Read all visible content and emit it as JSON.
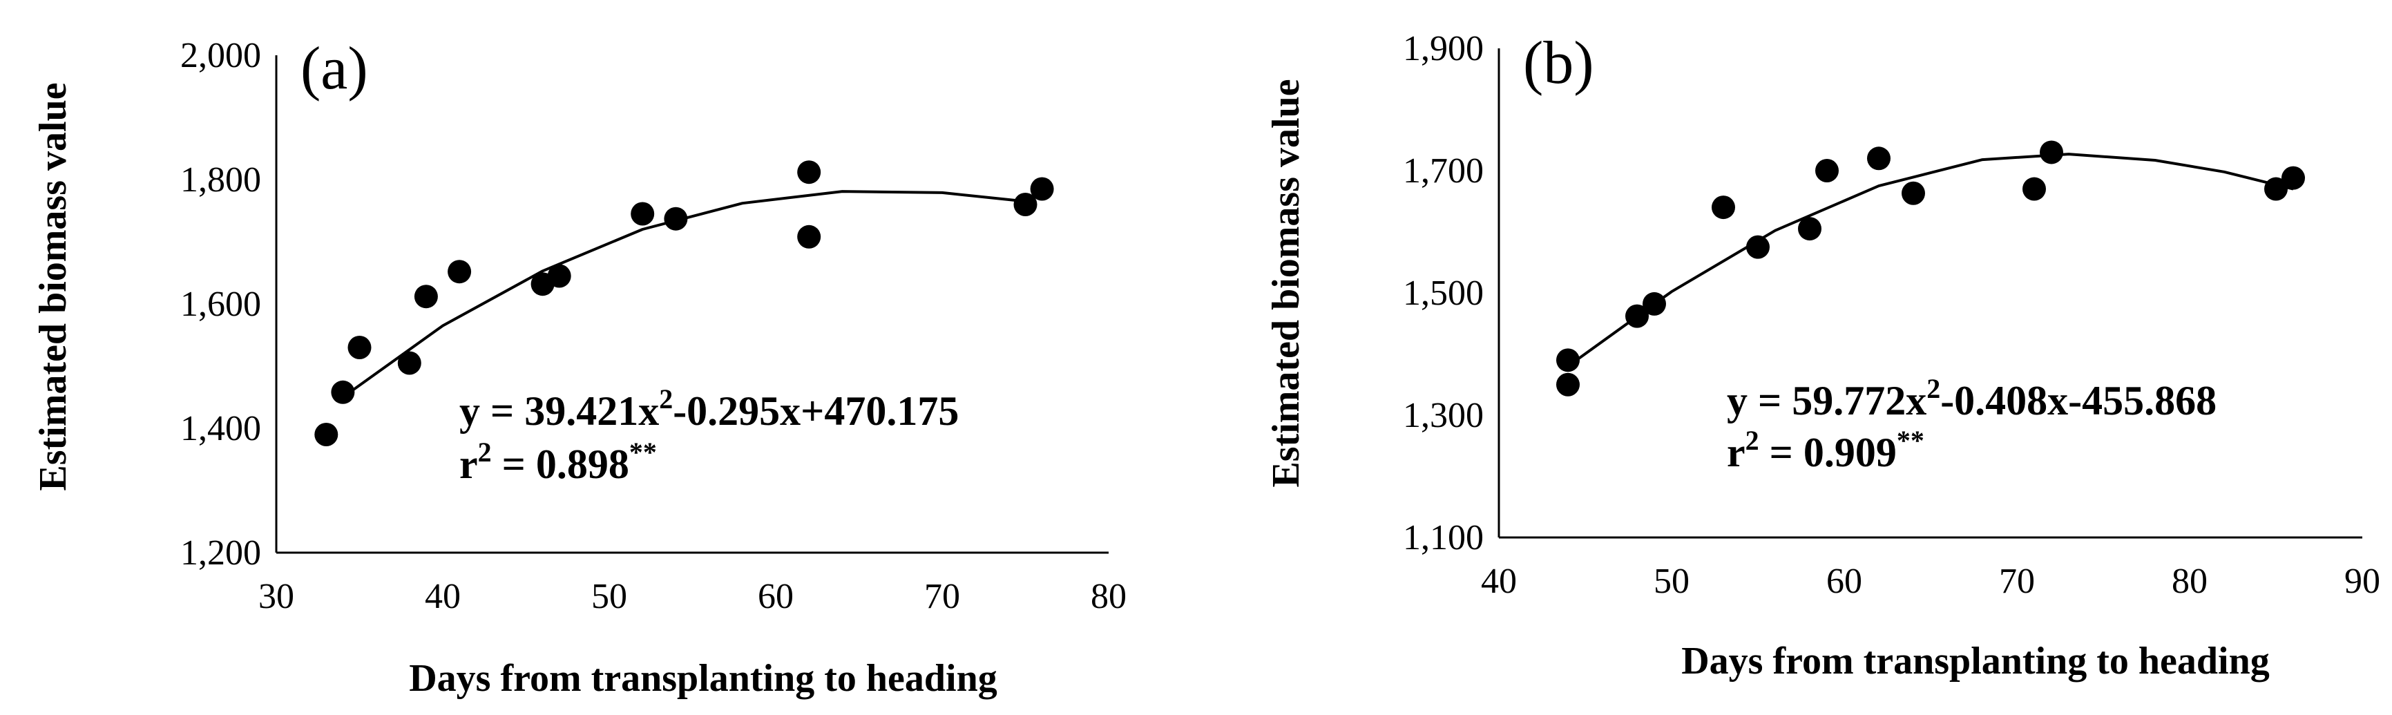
{
  "chart_data": [
    {
      "type": "scatter",
      "panel_label": "(a)",
      "xlabel": "Days from transplanting to heading",
      "ylabel": "Estimated biomass value",
      "xlim": [
        30,
        80
      ],
      "ylim": [
        1200,
        2000
      ],
      "xticks": [
        30,
        40,
        50,
        60,
        70,
        80
      ],
      "yticks": [
        1200,
        1400,
        1600,
        1800,
        2000
      ],
      "xtick_labels": [
        "30",
        "40",
        "50",
        "60",
        "70",
        "80"
      ],
      "ytick_labels": [
        "1,200",
        "1,400",
        "1,600",
        "1,800",
        "2,000"
      ],
      "grid": false,
      "series": [
        {
          "points": [
            {
              "x": 33,
              "y": 1390
            },
            {
              "x": 34,
              "y": 1458
            },
            {
              "x": 35,
              "y": 1530
            },
            {
              "x": 38,
              "y": 1505
            },
            {
              "x": 39,
              "y": 1612
            },
            {
              "x": 41,
              "y": 1652
            },
            {
              "x": 46,
              "y": 1632
            },
            {
              "x": 47,
              "y": 1645
            },
            {
              "x": 52,
              "y": 1745
            },
            {
              "x": 54,
              "y": 1737
            },
            {
              "x": 62,
              "y": 1812
            },
            {
              "x": 62,
              "y": 1708
            },
            {
              "x": 75,
              "y": 1760
            },
            {
              "x": 76,
              "y": 1785
            }
          ]
        }
      ],
      "trendline": {
        "x_range": [
          34,
          75
        ],
        "points": [
          {
            "x": 34,
            "y": 1450
          },
          {
            "x": 40,
            "y": 1565
          },
          {
            "x": 46,
            "y": 1653
          },
          {
            "x": 52,
            "y": 1720
          },
          {
            "x": 58,
            "y": 1762
          },
          {
            "x": 64,
            "y": 1781
          },
          {
            "x": 70,
            "y": 1779
          },
          {
            "x": 75,
            "y": 1765
          }
        ]
      },
      "equation_line1_pre": "y = 39.421x",
      "equation_sup": "2",
      "equation_line1_post": "-0.295x+470.175",
      "r2_pre": "r",
      "r2_sup": "2",
      "r2_value": " = 0.898",
      "r2_stars": "**"
    },
    {
      "type": "scatter",
      "panel_label": "(b)",
      "xlabel": "Days from transplanting to heading",
      "ylabel": "Estimated biomass value",
      "xlim": [
        40,
        90
      ],
      "ylim": [
        1100,
        1900
      ],
      "xticks": [
        40,
        50,
        60,
        70,
        80,
        90
      ],
      "yticks": [
        1100,
        1300,
        1500,
        1700,
        1900
      ],
      "xtick_labels": [
        "40",
        "50",
        "60",
        "70",
        "80",
        "90"
      ],
      "ytick_labels": [
        "1,100",
        "1,300",
        "1,500",
        "1,700",
        "1,900"
      ],
      "grid": false,
      "series": [
        {
          "points": [
            {
              "x": 44,
              "y": 1390
            },
            {
              "x": 44,
              "y": 1350
            },
            {
              "x": 48,
              "y": 1462
            },
            {
              "x": 49,
              "y": 1482
            },
            {
              "x": 53,
              "y": 1640
            },
            {
              "x": 55,
              "y": 1575
            },
            {
              "x": 58,
              "y": 1605
            },
            {
              "x": 59,
              "y": 1700
            },
            {
              "x": 62,
              "y": 1720
            },
            {
              "x": 64,
              "y": 1663
            },
            {
              "x": 71,
              "y": 1670
            },
            {
              "x": 72,
              "y": 1730
            },
            {
              "x": 85,
              "y": 1670
            },
            {
              "x": 86,
              "y": 1688
            }
          ]
        }
      ],
      "trendline": {
        "x_range": [
          44,
          86
        ],
        "points": [
          {
            "x": 44,
            "y": 1380
          },
          {
            "x": 50,
            "y": 1502
          },
          {
            "x": 56,
            "y": 1602
          },
          {
            "x": 62,
            "y": 1675
          },
          {
            "x": 68,
            "y": 1718
          },
          {
            "x": 73,
            "y": 1727
          },
          {
            "x": 78,
            "y": 1717
          },
          {
            "x": 82,
            "y": 1698
          },
          {
            "x": 86,
            "y": 1670
          }
        ]
      },
      "equation_line1_pre": "y = 59.772x",
      "equation_sup": "2",
      "equation_line1_post": "-0.408x-455.868",
      "r2_pre": "r",
      "r2_sup": "2",
      "r2_value": " = 0.909",
      "r2_stars": "**"
    }
  ]
}
